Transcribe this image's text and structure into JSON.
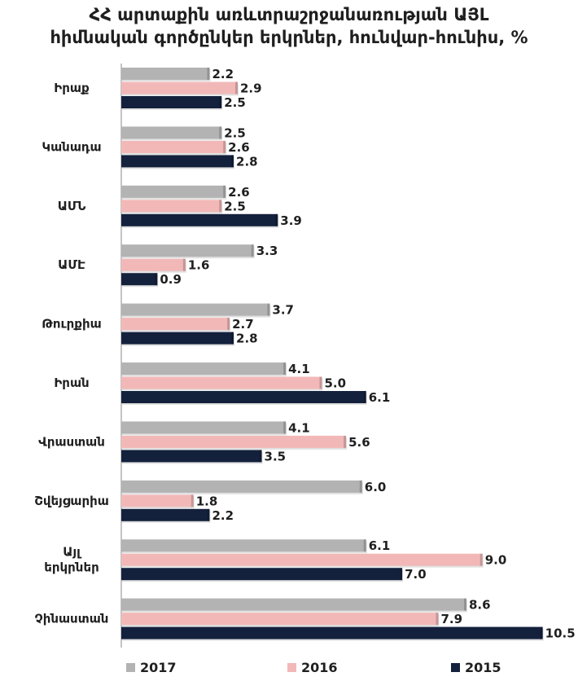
{
  "chart_data": {
    "type": "bar",
    "orientation": "horizontal",
    "title_lines": [
      "ՀՀ արտաքին առևտրաշրջանառության ԱՅԼ",
      "հիմնական գործընկեր երկրներ, հունվար-հունիս, %"
    ],
    "categories": [
      [
        "Իրաք"
      ],
      [
        "Կանադա"
      ],
      [
        "ԱՄՆ"
      ],
      [
        "ԱՄԷ"
      ],
      [
        "Թուրքիա"
      ],
      [
        "Իրան"
      ],
      [
        "Վրաստան"
      ],
      [
        "Շվեյցարիա"
      ],
      [
        "Այլ",
        "երկրներ"
      ],
      [
        "Չինաստան"
      ]
    ],
    "series": [
      {
        "name": "2017",
        "color": "#b3b3b3",
        "values": [
          2.2,
          2.5,
          2.6,
          3.3,
          3.7,
          4.1,
          4.1,
          6.0,
          6.1,
          8.6
        ],
        "labels": [
          "2.2",
          "2.5",
          "2.6",
          "3.3",
          "3.7",
          "4.1",
          "4.1",
          "6.0",
          "6.1",
          "8.6"
        ]
      },
      {
        "name": "2016",
        "color": "#f2b8b8",
        "values": [
          2.9,
          2.6,
          2.5,
          1.6,
          2.7,
          5.0,
          5.6,
          1.8,
          9.0,
          7.9
        ],
        "labels": [
          "2.9",
          "2.6",
          "2.5",
          "1.6",
          "2.7",
          "5.0",
          "5.6",
          "1.8",
          "9.0",
          "7.9"
        ]
      },
      {
        "name": "2015",
        "color": "#14213d",
        "values": [
          2.5,
          2.8,
          3.9,
          0.9,
          2.8,
          6.1,
          3.5,
          2.2,
          7.0,
          10.5
        ],
        "labels": [
          "2.5",
          "2.8",
          "3.9",
          "0.9",
          "2.8",
          "6.1",
          "3.5",
          "2.2",
          "7.0",
          "10.5"
        ]
      }
    ],
    "xlim": [
      0,
      10.5
    ],
    "grid": false,
    "legend_position": "bottom"
  }
}
